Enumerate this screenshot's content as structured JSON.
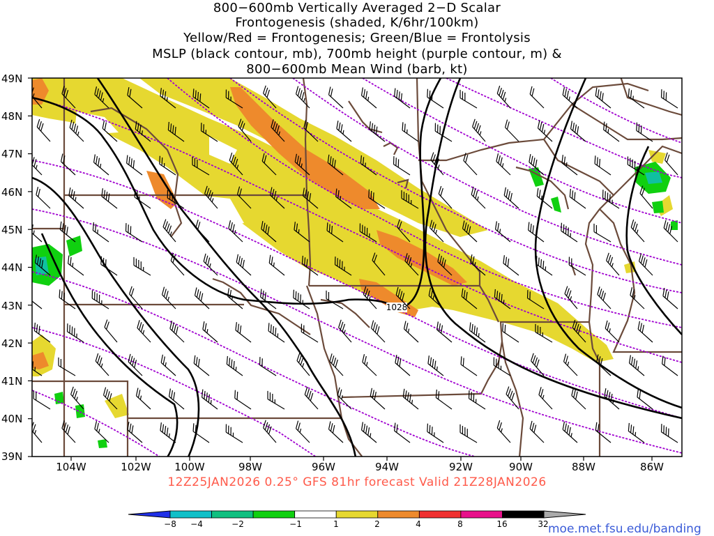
{
  "title": {
    "line1": "800−600mb Vertically Averaged 2−D Scalar",
    "line2": "Frontogenesis (shaded, K/6hr/100km)",
    "line3": "Yellow/Red = Frontogenesis;  Green/Blue = Frontolysis",
    "line4": "MSLP (black contour, mb), 700mb height (purple contour, m) &",
    "line5": "800−600mb Mean Wind (barb, kt)"
  },
  "lat_labels": [
    "49N",
    "48N",
    "47N",
    "46N",
    "45N",
    "44N",
    "43N",
    "42N",
    "41N",
    "40N",
    "39N"
  ],
  "lon_labels": [
    "104W",
    "102W",
    "100W",
    "98W",
    "96W",
    "94W",
    "92W",
    "90W",
    "88W",
    "86W"
  ],
  "contour_label": "1028",
  "forecast": "12Z25JAN2026 0.25° GFS 81hr forecast Valid 21Z28JAN2026",
  "colorbar": {
    "labels": [
      "−8",
      "−4",
      "−2",
      "−1",
      "1",
      "2",
      "4",
      "8",
      "16",
      "32"
    ],
    "colors": [
      "#2030e8",
      "#10c0c8",
      "#10c080",
      "#10d010",
      "#ffffff",
      "#e6d830",
      "#ee8a2c",
      "#f03030",
      "#e8108a",
      "#000000",
      "#aaaaaa"
    ]
  },
  "credit": "moe.met.fsu.edu/banding",
  "colors": {
    "boundary": "#6b4a3a",
    "height_contour": "#a000d0",
    "pressure_contour": "#000000",
    "frontogenesis_weak": "#e6d830",
    "frontogenesis_mod": "#ee8a2c",
    "frontolysis": "#10c080"
  }
}
